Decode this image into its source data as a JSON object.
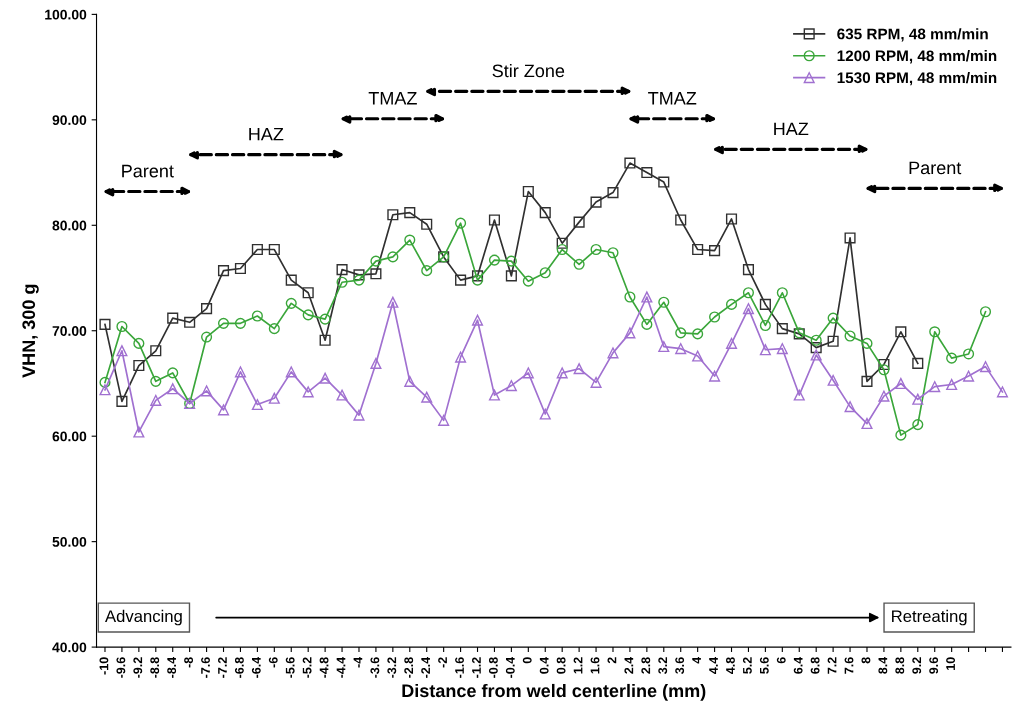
{
  "chart_data": {
    "type": "line",
    "xlabel": "Distance from weld centerline (mm)",
    "ylabel": "VHN, 300 g",
    "categories": [
      "-10",
      "-9.6",
      "-9.2",
      "-8.8",
      "-8.4",
      "-8",
      "-7.6",
      "-7.2",
      "-6.8",
      "-6.4",
      "-6",
      "-5.6",
      "-5.2",
      "-4.8",
      "-4.4",
      "-4",
      "-3.6",
      "-3.2",
      "-2.8",
      "-2.4",
      "-2",
      "-1.6",
      "-1.2",
      "-0.8",
      "-0.4",
      "0",
      "0.4",
      "0.8",
      "1.2",
      "1.6",
      "2",
      "2.4",
      "2.8",
      "3.2",
      "3.6",
      "4",
      "4.4",
      "4.8",
      "5.2",
      "5.6",
      "6",
      "6.4",
      "6.8",
      "7.2",
      "7.6",
      "8",
      "8.4",
      "8.8",
      "9.2",
      "9.6",
      "10",
      null,
      null,
      null
    ],
    "series": [
      {
        "name": "635 RPM, 48 mm/min",
        "color": "#303030",
        "marker": "square",
        "values": [
          70.6,
          63.3,
          66.7,
          68.1,
          71.2,
          70.8,
          72.1,
          75.7,
          75.9,
          77.7,
          77.7,
          74.8,
          73.6,
          69.1,
          75.8,
          75.3,
          75.4,
          81.0,
          81.2,
          80.1,
          77.0,
          74.8,
          75.2,
          80.5,
          75.2,
          83.2,
          81.2,
          78.3,
          80.3,
          82.2,
          83.1,
          85.9,
          85.0,
          84.1,
          80.5,
          77.7,
          77.6,
          80.6,
          75.8,
          72.5,
          70.2,
          69.7,
          68.4,
          69.0,
          78.8,
          65.2,
          66.8,
          69.9,
          66.9,
          null,
          null,
          null,
          null,
          null
        ]
      },
      {
        "name": "1200 RPM, 48 mm/min",
        "color": "#3aa63a",
        "marker": "circle",
        "values": [
          65.1,
          70.4,
          68.8,
          65.2,
          66.0,
          63.1,
          69.4,
          70.7,
          70.7,
          71.4,
          70.2,
          72.6,
          71.5,
          71.1,
          74.6,
          74.8,
          76.6,
          77.0,
          78.6,
          75.7,
          77.0,
          80.2,
          74.8,
          76.7,
          76.6,
          74.7,
          75.5,
          77.7,
          76.3,
          77.7,
          77.4,
          73.2,
          70.6,
          72.7,
          69.8,
          69.7,
          71.3,
          72.5,
          73.6,
          70.5,
          73.6,
          69.8,
          69.1,
          71.2,
          69.5,
          68.8,
          66.3,
          60.1,
          61.1,
          69.9,
          67.4,
          67.8,
          71.8,
          null
        ]
      },
      {
        "name": "1530 RPM, 48 mm/min",
        "color": "#a070d0",
        "marker": "triangle",
        "values": [
          64.4,
          68.1,
          60.4,
          63.4,
          64.5,
          63.1,
          64.3,
          62.5,
          66.1,
          63.0,
          63.6,
          66.1,
          64.2,
          65.5,
          63.9,
          62.0,
          66.9,
          72.7,
          65.2,
          63.7,
          61.5,
          67.5,
          71.0,
          63.9,
          64.8,
          66.0,
          62.1,
          66.0,
          66.4,
          65.1,
          67.9,
          69.8,
          73.2,
          68.5,
          68.3,
          67.6,
          65.7,
          68.8,
          72.1,
          68.2,
          68.3,
          63.9,
          67.7,
          65.3,
          62.8,
          61.2,
          63.8,
          65.0,
          63.5,
          64.7,
          64.9,
          65.7,
          66.6,
          64.2
        ]
      }
    ],
    "ylim": [
      40,
      100
    ],
    "yticks": [
      {
        "value": 40,
        "label": "40.00"
      },
      {
        "value": 50,
        "label": "50.00"
      },
      {
        "value": 60,
        "label": "60.00"
      },
      {
        "value": 70,
        "label": "70.00"
      },
      {
        "value": 80,
        "label": "80.00"
      },
      {
        "value": 90,
        "label": "90.00"
      },
      {
        "value": 100,
        "label": "100.00"
      }
    ],
    "grid": false,
    "legend": "top right",
    "line_style": "solid",
    "annotations": [
      "Parent",
      "HAZ",
      "TMAZ",
      "Stir Zone",
      "TMAZ",
      "HAZ",
      "Parent",
      "Advancing",
      "Retreating"
    ]
  }
}
